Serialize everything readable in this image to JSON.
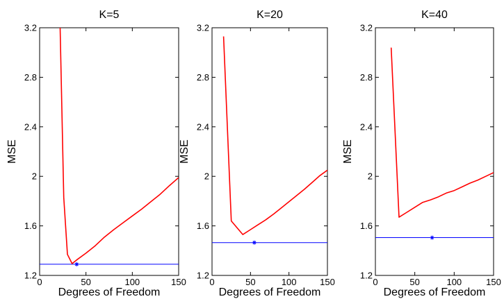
{
  "chart_data": [
    {
      "type": "line",
      "title": "K=5",
      "xlabel": "Degrees of Freedom",
      "ylabel": "MSE",
      "xlim": [
        0,
        150
      ],
      "ylim": [
        1.2,
        3.2
      ],
      "xticks": [
        0,
        50,
        100,
        150
      ],
      "xtick_labels": [
        "0",
        "50",
        "100",
        "150"
      ],
      "yticks": [
        1.2,
        1.6,
        2.0,
        2.4,
        2.8,
        3.2
      ],
      "ytick_labels": [
        "1.2",
        "1.6",
        "2",
        "2.4",
        "2.8",
        "3.2"
      ],
      "grid": false,
      "series": [
        {
          "color": "#ff0000",
          "x": [
            22,
            26,
            30,
            35,
            40,
            50,
            60,
            70,
            80,
            90,
            100,
            110,
            120,
            130,
            140,
            150
          ],
          "y": [
            3.25,
            1.83,
            1.37,
            1.295,
            1.325,
            1.38,
            1.44,
            1.51,
            1.57,
            1.625,
            1.68,
            1.735,
            1.795,
            1.855,
            1.925,
            1.99
          ]
        }
      ],
      "hline": {
        "y": 1.29,
        "color": "#0000ff"
      },
      "marker": {
        "x": 40,
        "y": 1.29,
        "symbol": "*",
        "color": "#0000ff"
      }
    },
    {
      "type": "line",
      "title": "K=20",
      "xlabel": "Degrees of Freedom",
      "ylabel": "MSE",
      "xlim": [
        0,
        150
      ],
      "ylim": [
        1.2,
        3.2
      ],
      "xticks": [
        0,
        50,
        100,
        150
      ],
      "xtick_labels": [
        "0",
        "50",
        "100",
        "150"
      ],
      "yticks": [
        1.2,
        1.6,
        2.0,
        2.4,
        2.8,
        3.2
      ],
      "ytick_labels": [
        "1.2",
        "1.6",
        "2",
        "2.4",
        "2.8",
        "3.2"
      ],
      "grid": false,
      "series": [
        {
          "color": "#ff0000",
          "x": [
            15,
            25,
            40,
            50,
            60,
            70,
            80,
            90,
            100,
            110,
            120,
            130,
            140,
            150
          ],
          "y": [
            3.13,
            1.64,
            1.53,
            1.57,
            1.61,
            1.65,
            1.695,
            1.745,
            1.795,
            1.845,
            1.895,
            1.95,
            2.005,
            2.05
          ]
        }
      ],
      "hline": {
        "y": 1.465,
        "color": "#0000ff"
      },
      "marker": {
        "x": 55,
        "y": 1.465,
        "symbol": "*",
        "color": "#0000ff"
      }
    },
    {
      "type": "line",
      "title": "K=40",
      "xlabel": "Degrees of Freedom",
      "ylabel": "MSE",
      "xlim": [
        0,
        150
      ],
      "ylim": [
        1.2,
        3.2
      ],
      "xticks": [
        0,
        50,
        100,
        150
      ],
      "xtick_labels": [
        "0",
        "50",
        "100",
        "150"
      ],
      "yticks": [
        1.2,
        1.6,
        2.0,
        2.4,
        2.8,
        3.2
      ],
      "ytick_labels": [
        "1.2",
        "1.6",
        "2",
        "2.4",
        "2.8",
        "3.2"
      ],
      "grid": false,
      "series": [
        {
          "color": "#ff0000",
          "x": [
            20,
            30,
            40,
            50,
            60,
            70,
            80,
            90,
            100,
            110,
            120,
            130,
            140,
            150
          ],
          "y": [
            3.04,
            1.67,
            1.71,
            1.75,
            1.79,
            1.81,
            1.835,
            1.865,
            1.885,
            1.915,
            1.945,
            1.97,
            2.0,
            2.03
          ]
        }
      ],
      "hline": {
        "y": 1.505,
        "color": "#0000ff"
      },
      "marker": {
        "x": 72,
        "y": 1.505,
        "symbol": "*",
        "color": "#0000ff"
      }
    }
  ]
}
